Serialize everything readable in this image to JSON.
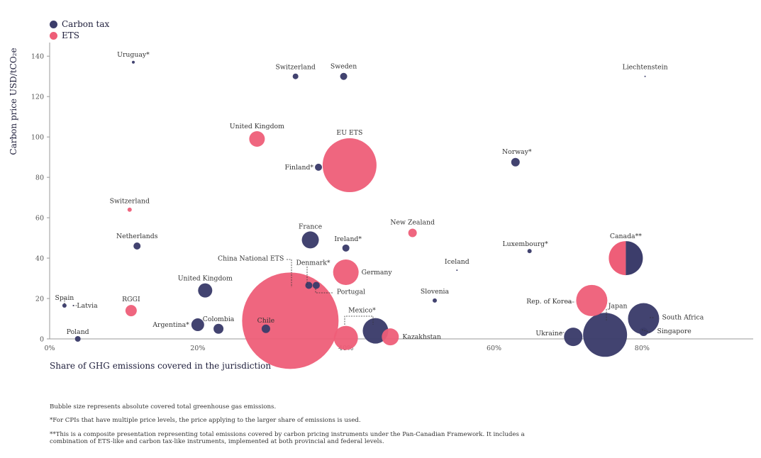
{
  "legend": {
    "carbon_tax": {
      "label": "Carbon tax",
      "color": "#3c3d6b"
    },
    "ets": {
      "label": "ETS",
      "color": "#ee5e78"
    }
  },
  "chart_data": {
    "type": "scatter",
    "xlabel": "Share of GHG emissions covered in the jurisdiction",
    "ylabel": "Carbon price USD/tCO₂e",
    "xlim": [
      0,
      95
    ],
    "ylim": [
      0,
      145
    ],
    "x_ticks": [
      {
        "value": 0,
        "label": "0%"
      },
      {
        "value": 20,
        "label": "20%"
      },
      {
        "value": 40,
        "label": "40%"
      },
      {
        "value": 60,
        "label": "60%"
      },
      {
        "value": 80,
        "label": "80%"
      }
    ],
    "y_ticks": [
      0,
      20,
      40,
      60,
      80,
      100,
      120,
      140
    ],
    "grid": false,
    "legend_position": "top-left",
    "size_note": "Bubble size represents absolute covered total greenhouse gas emissions.",
    "points": [
      {
        "label": "Uruguay*",
        "type": "carbon_tax",
        "x": 11.3,
        "y": 137,
        "r": 2
      },
      {
        "label": "Switzerland",
        "type": "carbon_tax",
        "x": 33.2,
        "y": 130,
        "r": 4
      },
      {
        "label": "Sweden",
        "type": "carbon_tax",
        "x": 39.7,
        "y": 130,
        "r": 5
      },
      {
        "label": "Liechtenstein",
        "type": "carbon_tax",
        "x": 80.4,
        "y": 130,
        "r": 1
      },
      {
        "label": "United Kingdom",
        "type": "ets",
        "x": 28,
        "y": 99,
        "r": 11
      },
      {
        "label": "EU ETS",
        "type": "ets",
        "x": 40.5,
        "y": 86,
        "r": 38
      },
      {
        "label": "Finland*",
        "type": "carbon_tax",
        "x": 36.3,
        "y": 85,
        "r": 5
      },
      {
        "label": "Norway*",
        "type": "carbon_tax",
        "x": 62.9,
        "y": 87.5,
        "r": 6
      },
      {
        "label": "Switzerland",
        "type": "ets",
        "x": 10.8,
        "y": 64,
        "r": 3
      },
      {
        "label": "Netherlands",
        "type": "carbon_tax",
        "x": 11.8,
        "y": 46,
        "r": 5
      },
      {
        "label": "France",
        "type": "carbon_tax",
        "x": 35.2,
        "y": 49,
        "r": 12
      },
      {
        "label": "Ireland*",
        "type": "carbon_tax",
        "x": 40,
        "y": 45,
        "r": 5
      },
      {
        "label": "New Zealand",
        "type": "ets",
        "x": 49,
        "y": 52.5,
        "r": 6
      },
      {
        "label": "Luxembourg*",
        "type": "carbon_tax",
        "x": 64.8,
        "y": 43.5,
        "r": 3
      },
      {
        "label": "Canada**",
        "type": "composite",
        "x": 77.8,
        "y": 40,
        "r": 24
      },
      {
        "label": "Iceland",
        "type": "carbon_tax",
        "x": 55,
        "y": 34,
        "r": 1
      },
      {
        "label": "Germany",
        "type": "ets",
        "x": 40,
        "y": 33,
        "r": 18
      },
      {
        "label": "China National ETS",
        "type": "ets",
        "x": 32.5,
        "y": 9,
        "r": 68
      },
      {
        "label": "Denmark*",
        "type": "carbon_tax",
        "x": 35,
        "y": 26.5,
        "r": 5
      },
      {
        "label": "Portugal",
        "type": "carbon_tax",
        "x": 36,
        "y": 26.5,
        "r": 5
      },
      {
        "label": "United Kingdom",
        "type": "carbon_tax",
        "x": 21,
        "y": 24,
        "r": 10
      },
      {
        "label": "Slovenia",
        "type": "carbon_tax",
        "x": 52,
        "y": 19,
        "r": 3
      },
      {
        "label": "Spain",
        "type": "carbon_tax",
        "x": 2,
        "y": 16.5,
        "r": 3
      },
      {
        "label": "Latvia",
        "type": "carbon_tax",
        "x": 3.2,
        "y": 16.5,
        "r": 1
      },
      {
        "label": "RGGI",
        "type": "ets",
        "x": 11,
        "y": 14,
        "r": 8
      },
      {
        "label": "Rep. of Korea",
        "type": "ets",
        "x": 73.2,
        "y": 19,
        "r": 22
      },
      {
        "label": "Japan",
        "type": "carbon_tax",
        "x": 75,
        "y": 2,
        "r": 31
      },
      {
        "label": "South Africa",
        "type": "carbon_tax",
        "x": 80.2,
        "y": 10,
        "r": 22
      },
      {
        "label": "Singapore",
        "type": "carbon_tax",
        "x": 80.2,
        "y": 3.5,
        "r": 6
      },
      {
        "label": "Ukraine",
        "type": "carbon_tax",
        "x": 70.7,
        "y": 1,
        "r": 13
      },
      {
        "label": "Mexico*",
        "type": "carbon_tax",
        "x": 44,
        "y": 4,
        "r": 18
      },
      {
        "label": "Kazakhstan",
        "type": "ets",
        "x": 46,
        "y": 1,
        "r": 12
      },
      {
        "label": "",
        "type": "ets",
        "x": 40,
        "y": 0.5,
        "r": 17
      },
      {
        "label": "Argentina*",
        "type": "carbon_tax",
        "x": 20,
        "y": 7,
        "r": 9
      },
      {
        "label": "Colombia",
        "type": "carbon_tax",
        "x": 22.8,
        "y": 5,
        "r": 7
      },
      {
        "label": "Chile",
        "type": "carbon_tax",
        "x": 29.2,
        "y": 5,
        "r": 6
      },
      {
        "label": "Poland",
        "type": "carbon_tax",
        "x": 3.8,
        "y": 0,
        "r": 4
      }
    ]
  },
  "notes": [
    "Bubble size represents absolute covered total greenhouse gas emissions.",
    "*For CPIs that have multiple price levels, the price applying to the larger share of emissions is used.",
    "**This is a composite presentation representing total emissions covered by carbon pricing instruments under the Pan-Canadian Framework. It includes a combination of ETS-like and carbon tax-like instruments, implemented at both provincial and federal levels."
  ]
}
